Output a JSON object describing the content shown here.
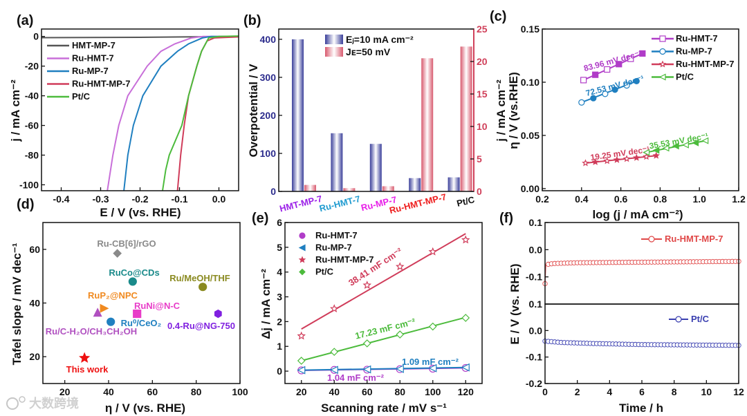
{
  "figure": {
    "watermark": "大数跨境"
  },
  "chart_data": [
    {
      "panel_label": "(a)",
      "type": "line",
      "xlabel": "E / V (vs. RHE)",
      "ylabel": "j / mA cm⁻²",
      "xlim": [
        -0.45,
        0.05
      ],
      "ylim": [
        -104,
        5
      ],
      "xticks": [
        -0.4,
        -0.3,
        -0.2,
        -0.1,
        0.0
      ],
      "xtick_labels": [
        "-0.4",
        "-0.3",
        "-0.2",
        "-0.1",
        "0.0"
      ],
      "yticks": [
        0,
        -20,
        -40,
        -60,
        -80,
        -100
      ],
      "ytick_labels": [
        "0",
        "-20",
        "-40",
        "-60",
        "-80",
        "-100"
      ],
      "legend_position": "top-left",
      "series": [
        {
          "name": "HMT-MP-7",
          "color": "#555555",
          "points": [
            [
              -0.45,
              -0.8
            ],
            [
              -0.2,
              -0.6
            ],
            [
              0.05,
              0
            ]
          ]
        },
        {
          "name": "Ru-HMT-7",
          "color": "#c86fd9",
          "points": [
            [
              -0.283,
              -104
            ],
            [
              -0.269,
              -80
            ],
            [
              -0.254,
              -60
            ],
            [
              -0.231,
              -40
            ],
            [
              -0.182,
              -20
            ],
            [
              -0.147,
              -10
            ],
            [
              -0.112,
              -5
            ],
            [
              -0.07,
              -1
            ],
            [
              -0.04,
              0
            ],
            [
              0.05,
              0
            ]
          ]
        },
        {
          "name": "Ru-MP-7",
          "color": "#1f7fc0",
          "points": [
            [
              -0.241,
              -104
            ],
            [
              -0.231,
              -80
            ],
            [
              -0.217,
              -60
            ],
            [
              -0.193,
              -40
            ],
            [
              -0.147,
              -20
            ],
            [
              -0.105,
              -10
            ],
            [
              -0.077,
              -5
            ],
            [
              -0.042,
              -1
            ],
            [
              -0.02,
              0
            ],
            [
              0.05,
              0
            ]
          ]
        },
        {
          "name": "Ru-HMT-MP-7",
          "color": "#d03c5a",
          "points": [
            [
              -0.105,
              -104
            ],
            [
              -0.097,
              -80
            ],
            [
              -0.088,
              -60
            ],
            [
              -0.077,
              -40
            ],
            [
              -0.056,
              -20
            ],
            [
              -0.044,
              -10
            ],
            [
              -0.03,
              -3
            ],
            [
              -0.012,
              -1
            ],
            [
              0.05,
              -0.3
            ]
          ]
        },
        {
          "name": "Pt/C",
          "color": "#4cbb3c",
          "points": [
            [
              -0.143,
              -104
            ],
            [
              -0.135,
              -90
            ],
            [
              -0.126,
              -80
            ],
            [
              -0.094,
              -60
            ],
            [
              -0.077,
              -40
            ],
            [
              -0.056,
              -20
            ],
            [
              -0.044,
              -10
            ],
            [
              -0.026,
              -1
            ],
            [
              0.0,
              0
            ],
            [
              0.05,
              0.3
            ]
          ]
        }
      ]
    },
    {
      "panel_label": "(b)",
      "type": "bar",
      "ylabel": "Overpotential / V",
      "y2label": "j / mA cm⁻²",
      "ylim": [
        0,
        427
      ],
      "y2lim": [
        0,
        25
      ],
      "yticks": [
        0,
        100,
        200,
        300,
        400
      ],
      "ytick_labels": [
        "0",
        "100",
        "200",
        "300",
        "400"
      ],
      "y2ticks": [
        0,
        5,
        10,
        15,
        20,
        25
      ],
      "y2tick_labels": [
        "0",
        "5",
        "10",
        "15",
        "20",
        "25"
      ],
      "axis_color": "#2b2b8c",
      "axis2_color": "#d0405a",
      "categories": [
        "HMT-MP-7",
        "Ru-HMT-7",
        "Ru-MP-7",
        "Ru-HMT-MP-7",
        "Pt/C"
      ],
      "category_colors": [
        "#9b1fe8",
        "#1f9bd0",
        "#e81fe8",
        "#ee1c1c",
        "#111111"
      ],
      "legend_position": "top-center",
      "series": [
        {
          "name": "Eⱼ=10 mA cm⁻²",
          "axis": "left",
          "color": "#3a3f9a",
          "values": [
            400,
            153,
            125,
            35,
            37
          ]
        },
        {
          "name": "Jᴇ=50 mV",
          "axis": "right",
          "color": "#d85a6e",
          "values": [
            1.0,
            0.5,
            0.8,
            20.5,
            22.3
          ]
        }
      ]
    },
    {
      "panel_label": "(c)",
      "type": "scatter",
      "xlabel": "log (j / mA cm⁻²)",
      "ylabel": "η / V (vs.RHE)",
      "xlim": [
        0.2,
        1.2
      ],
      "ylim": [
        -0.002,
        0.15
      ],
      "xticks": [
        0.2,
        0.4,
        0.6,
        0.8,
        1.0,
        1.2
      ],
      "xtick_labels": [
        "0.2",
        "0.4",
        "0.6",
        "0.8",
        "1.0",
        "1.2"
      ],
      "yticks": [
        0.0,
        0.05,
        0.1,
        0.15
      ],
      "ytick_labels": [
        "0.00",
        "0.05",
        "0.10",
        "0.15"
      ],
      "legend_position": "top-right",
      "series": [
        {
          "name": "Ru-HMT-7",
          "color": "#b03cc8",
          "marker": "square",
          "annotation": "83.96 mV dec⁻¹",
          "x": [
            0.41,
            0.47,
            0.53,
            0.59,
            0.65,
            0.71
          ],
          "y": [
            0.102,
            0.107,
            0.112,
            0.117,
            0.122,
            0.127
          ]
        },
        {
          "name": "Ru-MP-7",
          "color": "#1f7fc0",
          "marker": "circle",
          "annotation": "72.53 mV dec⁻¹",
          "x": [
            0.4,
            0.46,
            0.52,
            0.57,
            0.63,
            0.68
          ],
          "y": [
            0.081,
            0.085,
            0.089,
            0.093,
            0.097,
            0.101
          ]
        },
        {
          "name": "Ru-HMT-MP-7",
          "color": "#d03c5a",
          "marker": "star",
          "annotation": "19.25 mV dec⁻¹",
          "x": [
            0.42,
            0.47,
            0.53,
            0.58,
            0.63,
            0.68,
            0.73,
            0.78
          ],
          "y": [
            0.024,
            0.025,
            0.026,
            0.027,
            0.028,
            0.029,
            0.03,
            0.031
          ]
        },
        {
          "name": "Pt/C",
          "color": "#4cbb3c",
          "marker": "triangle-left",
          "annotation": "35.53 mV dec⁻¹",
          "x": [
            0.73,
            0.78,
            0.83,
            0.88,
            0.93,
            0.98,
            1.03
          ],
          "y": [
            0.034,
            0.036,
            0.038,
            0.04,
            0.041,
            0.043,
            0.045
          ]
        }
      ]
    },
    {
      "panel_label": "(d)",
      "type": "scatter",
      "xlabel": "η / V (vs. RHE)",
      "ylabel": "Tafel slope / mV dec⁻¹",
      "xlim": [
        10,
        100
      ],
      "ylim": [
        10,
        70
      ],
      "xticks": [
        20,
        40,
        60,
        80,
        100
      ],
      "xtick_labels": [
        "20",
        "40",
        "60",
        "80",
        "100"
      ],
      "yticks": [
        20,
        40,
        60
      ],
      "ytick_labels": [
        "20",
        "40",
        "60"
      ],
      "points": [
        {
          "name": "Ru-CB[6]/rGO",
          "x": 44,
          "y": 58.5,
          "color": "#8a8a8a",
          "marker": "diamond"
        },
        {
          "name": "RuCo@CDs",
          "x": 51,
          "y": 48,
          "color": "#1a8a8a",
          "marker": "circle"
        },
        {
          "name": "Ru/MeOH/THF",
          "x": 83,
          "y": 46,
          "color": "#8a8a20",
          "marker": "circle"
        },
        {
          "name": "RuP₂@NPC",
          "x": 38,
          "y": 38,
          "color": "#f08a20",
          "marker": "triangle-right"
        },
        {
          "name": "RuNi@N-C",
          "x": 53,
          "y": 36,
          "color": "#e83cc8",
          "marker": "square"
        },
        {
          "name": "Ru⁰/CeO₂",
          "x": 41,
          "y": 33,
          "color": "#2080c0",
          "marker": "circle"
        },
        {
          "name": "0.4-Ru@NG-750",
          "x": 90,
          "y": 36,
          "color": "#8020e0",
          "marker": "hexagon"
        },
        {
          "name": "Ru/C-H₂O/CH₃CH₂OH",
          "x": 35,
          "y": 36.5,
          "color": "#b050c0",
          "marker": "triangle-up"
        },
        {
          "name": "This work",
          "x": 29,
          "y": 19.5,
          "color": "#ee1111",
          "marker": "star"
        }
      ]
    },
    {
      "panel_label": "(e)",
      "type": "scatter",
      "xlabel": "Scanning rate / mV s⁻¹",
      "ylabel": "Δj / mA cm⁻²",
      "xlim": [
        10,
        130
      ],
      "ylim": [
        -0.5,
        6
      ],
      "xticks": [
        20,
        40,
        60,
        80,
        100,
        120
      ],
      "xtick_labels": [
        "20",
        "40",
        "60",
        "80",
        "100",
        "120"
      ],
      "yticks": [
        0,
        1,
        2,
        3,
        4,
        5,
        6
      ],
      "ytick_labels": [
        "0",
        "1",
        "2",
        "3",
        "4",
        "5",
        "6"
      ],
      "legend_position": "top-left",
      "series": [
        {
          "name": "Ru-HMT-7",
          "color": "#b03cc8",
          "marker": "circle",
          "annotation": "1.04 mF cm⁻²",
          "x": [
            20,
            40,
            60,
            80,
            100,
            120
          ],
          "y": [
            0.03,
            0.05,
            0.06,
            0.08,
            0.1,
            0.13
          ],
          "fit": [
            [
              20,
              0.03
            ],
            [
              120,
              0.13
            ]
          ]
        },
        {
          "name": "Ru-MP-7",
          "color": "#1f7fc0",
          "marker": "triangle-left",
          "annotation": "1.09 mF cm⁻²",
          "x": [
            20,
            40,
            60,
            80,
            100,
            120
          ],
          "y": [
            0.04,
            0.05,
            0.07,
            0.09,
            0.12,
            0.15
          ],
          "fit": [
            [
              20,
              0.04
            ],
            [
              120,
              0.15
            ]
          ]
        },
        {
          "name": "Ru-HMT-MP-7",
          "color": "#d03c5a",
          "marker": "star",
          "annotation": "38.41 mF cm⁻²",
          "x": [
            20,
            40,
            60,
            80,
            100,
            120
          ],
          "y": [
            1.42,
            2.52,
            3.47,
            4.22,
            4.82,
            5.3
          ],
          "fit": [
            [
              20,
              1.7
            ],
            [
              120,
              5.55
            ]
          ]
        },
        {
          "name": "Pt/C",
          "color": "#4cbb3c",
          "marker": "diamond",
          "annotation": "17.23 mF cm⁻²",
          "x": [
            20,
            40,
            60,
            80,
            100,
            120
          ],
          "y": [
            0.42,
            0.78,
            1.12,
            1.48,
            1.8,
            2.15
          ],
          "fit": [
            [
              20,
              0.42
            ],
            [
              120,
              2.17
            ]
          ]
        }
      ]
    },
    {
      "panel_label": "(f)",
      "type": "line",
      "xlabel": "Time / h",
      "ylabel": "E / V (vs. RHE)",
      "xlim": [
        0,
        12
      ],
      "xticks": [
        0,
        2,
        4,
        6,
        8,
        10,
        12
      ],
      "xtick_labels": [
        "0",
        "2",
        "4",
        "6",
        "8",
        "10",
        "12"
      ],
      "marker_interval_h": 0.2,
      "subplots": [
        {
          "ylim": [
            -0.2,
            0.1
          ],
          "yticks": [
            0.1,
            0.0,
            -0.1
          ],
          "ytick_labels": [
            "0.1",
            "0.0",
            "-0.1"
          ],
          "series": {
            "name": "Ru-HMT-MP-7",
            "color": "#e04848",
            "points": [
              [
                0,
                -0.125
              ],
              [
                0.05,
                -0.055
              ],
              [
                0.5,
                -0.051
              ],
              [
                2,
                -0.048
              ],
              [
                6,
                -0.046
              ],
              [
                12,
                -0.043
              ]
            ]
          }
        },
        {
          "ylim": [
            -0.2,
            0.1
          ],
          "yticks": [
            0.1,
            0.0,
            -0.1,
            -0.2
          ],
          "ytick_labels": [
            "0.1",
            "0.0",
            "-0.1",
            "-0.2"
          ],
          "series": {
            "name": "Pt/C",
            "color": "#3a3fb0",
            "points": [
              [
                0,
                -0.04
              ],
              [
                1,
                -0.045
              ],
              [
                3,
                -0.049
              ],
              [
                6,
                -0.053
              ],
              [
                12,
                -0.056
              ]
            ]
          }
        }
      ]
    }
  ]
}
